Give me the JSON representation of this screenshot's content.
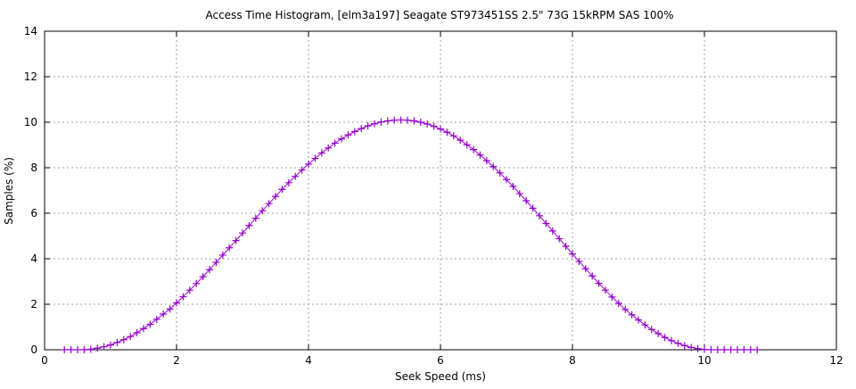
{
  "chart_data": {
    "type": "line",
    "title": "Access Time Histogram, [elm3a197] Seagate ST973451SS 2.5\" 73G 15kRPM SAS 100%",
    "xlabel": "Seek Speed (ms)",
    "ylabel": "Samples (%)",
    "xlim": [
      0,
      12
    ],
    "ylim": [
      0,
      14
    ],
    "xticks": [
      "0",
      "2",
      "4",
      "6",
      "8",
      "10",
      "12"
    ],
    "yticks": [
      "0",
      "2",
      "4",
      "6",
      "8",
      "10",
      "12",
      "14"
    ],
    "grid": true,
    "marker": "plus",
    "color": "#9400d3",
    "series": [
      {
        "x": [
          0.3,
          0.4,
          0.5,
          0.6,
          0.7,
          0.8,
          0.9,
          1.0,
          1.1,
          1.2,
          1.3,
          1.4,
          1.5,
          1.6,
          1.7,
          1.8,
          1.9,
          2.0,
          2.1,
          2.2,
          2.3,
          2.4,
          2.5,
          2.6,
          2.7,
          2.8,
          2.9,
          3.0,
          3.1,
          3.2,
          3.3,
          3.4,
          3.5,
          3.6,
          3.7,
          3.8,
          3.9,
          4.0,
          4.1,
          4.2,
          4.3,
          4.4,
          4.5,
          4.6,
          4.7,
          4.8,
          4.9,
          5.0,
          5.1,
          5.2,
          5.3,
          5.4,
          5.5,
          5.6,
          5.7,
          5.8,
          5.9,
          6.0,
          6.1,
          6.2,
          6.3,
          6.4,
          6.5,
          6.6,
          6.7,
          6.8,
          6.9,
          7.0,
          7.1,
          7.2,
          7.3,
          7.4,
          7.5,
          7.6,
          7.7,
          7.8,
          7.9,
          8.0,
          8.1,
          8.2,
          8.3,
          8.4,
          8.5,
          8.6,
          8.7,
          8.8,
          8.9,
          9.0,
          9.1,
          9.2,
          9.3,
          9.4,
          9.5,
          9.6,
          9.7,
          9.8,
          9.9,
          10.0,
          10.1,
          10.2,
          10.3,
          10.4,
          10.5,
          10.6,
          10.7,
          10.8
        ],
        "y": [
          0,
          0,
          0,
          0,
          0.02,
          0.07,
          0.13,
          0.21,
          0.32,
          0.44,
          0.58,
          0.75,
          0.93,
          1.12,
          1.34,
          1.57,
          1.79,
          2.06,
          2.33,
          2.62,
          2.91,
          3.21,
          3.52,
          3.84,
          4.16,
          4.48,
          4.8,
          5.13,
          5.46,
          5.78,
          6.11,
          6.42,
          6.74,
          7.05,
          7.34,
          7.62,
          7.9,
          8.16,
          8.41,
          8.65,
          8.87,
          9.08,
          9.27,
          9.44,
          9.59,
          9.72,
          9.84,
          9.93,
          10.01,
          10.06,
          10.09,
          10.1,
          10.09,
          10.06,
          10.0,
          9.92,
          9.82,
          9.7,
          9.56,
          9.4,
          9.21,
          9.01,
          8.8,
          8.56,
          8.31,
          8.05,
          7.77,
          7.48,
          7.18,
          6.86,
          6.55,
          6.22,
          5.89,
          5.55,
          5.22,
          4.88,
          4.55,
          4.21,
          3.88,
          3.56,
          3.24,
          2.92,
          2.62,
          2.32,
          2.04,
          1.77,
          1.54,
          1.31,
          1.09,
          0.89,
          0.71,
          0.54,
          0.4,
          0.28,
          0.18,
          0.1,
          0.05,
          0.01,
          0,
          0,
          0,
          0,
          0,
          0,
          0,
          0
        ]
      }
    ]
  }
}
